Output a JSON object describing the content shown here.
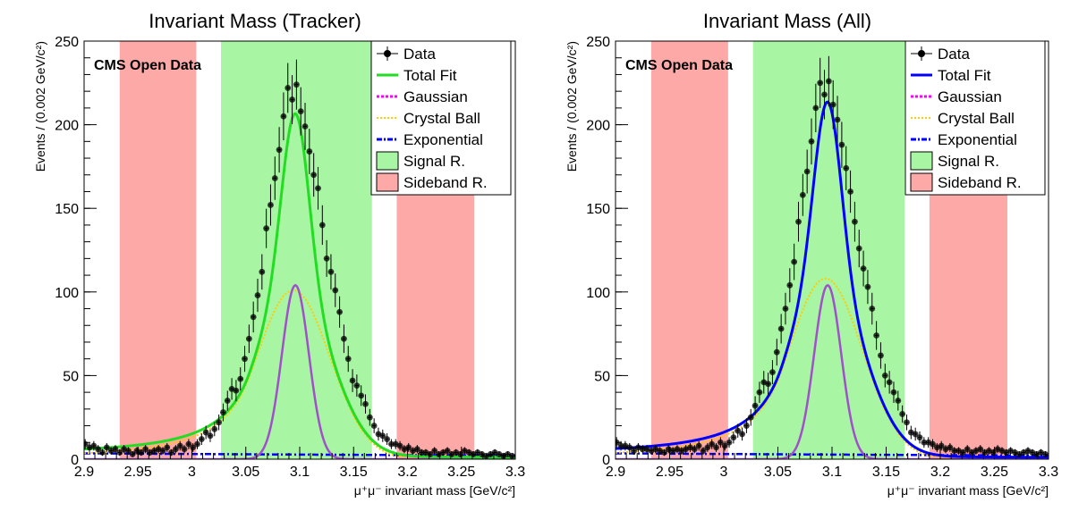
{
  "chart_data": [
    {
      "type": "line",
      "title": "Invariant Mass (Tracker)",
      "xlabel": "μ⁺μ⁻ invariant mass [GeV/c²]",
      "ylabel": "Events / (0.002 GeV/c²)",
      "xlim": [
        2.9,
        3.3
      ],
      "ylim": [
        0,
        250
      ],
      "xticks": [
        "2.9",
        "2.95",
        "3",
        "3.05",
        "3.1",
        "3.15",
        "3.2",
        "3.25",
        "3.3"
      ],
      "yticks": [
        "0",
        "50",
        "100",
        "150",
        "200",
        "250"
      ],
      "annotation": "CMS Open Data",
      "legend": [
        "Data",
        "Total Fit",
        "Gaussian",
        "Crystal Ball",
        "Exponential",
        "Signal R.",
        "Sideband R."
      ],
      "legend_position": "top-right",
      "regions": {
        "signal": [
          3.027,
          3.167
        ],
        "sideband_left": [
          2.933,
          3.004
        ],
        "sideband_right": [
          3.19,
          3.262
        ]
      },
      "colors": {
        "total_fit": "#22dd22",
        "gaussian": "#ff00ff",
        "crystal_ball": "#ffcc00",
        "exponential": "#0000ff",
        "signal_region": "#a8f5a4",
        "sideband_region": "#fca9a7"
      },
      "model": {
        "gaussian": {
          "amplitude": 104,
          "mean": 3.096,
          "sigma": 0.0125
        },
        "crystal_ball": {
          "amplitude": 101,
          "mean": 3.094,
          "sigma": 0.034,
          "alpha": 1.2,
          "n": 2
        },
        "exponential": {
          "amplitude": 3.5,
          "slope": -1.2
        }
      },
      "data": {
        "x": [
          2.901,
          2.905,
          2.909,
          2.913,
          2.917,
          2.921,
          2.925,
          2.929,
          2.933,
          2.937,
          2.941,
          2.945,
          2.949,
          2.953,
          2.957,
          2.961,
          2.965,
          2.969,
          2.973,
          2.977,
          2.981,
          2.985,
          2.989,
          2.993,
          2.997,
          3.001,
          3.005,
          3.009,
          3.013,
          3.017,
          3.021,
          3.025,
          3.029,
          3.033,
          3.037,
          3.041,
          3.045,
          3.049,
          3.053,
          3.057,
          3.061,
          3.065,
          3.069,
          3.073,
          3.077,
          3.081,
          3.085,
          3.089,
          3.093,
          3.097,
          3.101,
          3.105,
          3.109,
          3.113,
          3.117,
          3.121,
          3.125,
          3.129,
          3.133,
          3.137,
          3.141,
          3.145,
          3.149,
          3.153,
          3.157,
          3.161,
          3.165,
          3.169,
          3.173,
          3.177,
          3.181,
          3.185,
          3.189,
          3.193,
          3.197,
          3.201,
          3.205,
          3.209,
          3.213,
          3.217,
          3.221,
          3.225,
          3.229,
          3.233,
          3.237,
          3.241,
          3.245,
          3.249,
          3.253,
          3.257,
          3.261,
          3.265,
          3.269,
          3.273,
          3.277,
          3.281,
          3.285,
          3.289,
          3.293,
          3.297
        ],
        "y": [
          9,
          7,
          8,
          6,
          4,
          7,
          5,
          6,
          4,
          6,
          5,
          3,
          5,
          4,
          6,
          4,
          5,
          6,
          5,
          7,
          4,
          6,
          8,
          6,
          9,
          7,
          9,
          12,
          16,
          14,
          18,
          22,
          28,
          35,
          42,
          41,
          48,
          60,
          72,
          85,
          98,
          112,
          138,
          152,
          168,
          185,
          205,
          222,
          215,
          224,
          208,
          199,
          184,
          170,
          162,
          140,
          120,
          112,
          101,
          88,
          72,
          60,
          47,
          44,
          38,
          33,
          25,
          20,
          15,
          14,
          12,
          9,
          9,
          8,
          6,
          7,
          5,
          6,
          4,
          4,
          3,
          5,
          3,
          4,
          5,
          3,
          4,
          3,
          5,
          4,
          3,
          4,
          3,
          2,
          3,
          4,
          3,
          2,
          3,
          2
        ]
      }
    },
    {
      "type": "line",
      "title": "Invariant Mass (All)",
      "xlabel": "μ⁺μ⁻ invariant mass [GeV/c²]",
      "ylabel": "Events / (0.002 GeV/c²)",
      "xlim": [
        2.9,
        3.3
      ],
      "ylim": [
        0,
        250
      ],
      "xticks": [
        "2.9",
        "2.95",
        "3",
        "3.05",
        "3.1",
        "3.15",
        "3.2",
        "3.25",
        "3.3"
      ],
      "yticks": [
        "0",
        "50",
        "100",
        "150",
        "200",
        "250"
      ],
      "annotation": "CMS Open Data",
      "legend": [
        "Data",
        "Total Fit",
        "Gaussian",
        "Crystal Ball",
        "Exponential",
        "Signal R.",
        "Sideband R."
      ],
      "legend_position": "top-right",
      "regions": {
        "signal": [
          3.027,
          3.167
        ],
        "sideband_left": [
          2.933,
          3.004
        ],
        "sideband_right": [
          3.19,
          3.262
        ]
      },
      "colors": {
        "total_fit": "#0000ff",
        "gaussian": "#ff00ff",
        "crystal_ball": "#ffcc00",
        "exponential": "#0000ff",
        "signal_region": "#a8f5a4",
        "sideband_region": "#fca9a7"
      },
      "model": {
        "gaussian": {
          "amplitude": 104,
          "mean": 3.096,
          "sigma": 0.0125
        },
        "crystal_ball": {
          "amplitude": 108,
          "mean": 3.094,
          "sigma": 0.034,
          "alpha": 1.2,
          "n": 2
        },
        "exponential": {
          "amplitude": 3.5,
          "slope": -1.2
        }
      },
      "data": {
        "x": [
          2.901,
          2.905,
          2.909,
          2.913,
          2.917,
          2.921,
          2.925,
          2.929,
          2.933,
          2.937,
          2.941,
          2.945,
          2.949,
          2.953,
          2.957,
          2.961,
          2.965,
          2.969,
          2.973,
          2.977,
          2.981,
          2.985,
          2.989,
          2.993,
          2.997,
          3.001,
          3.005,
          3.009,
          3.013,
          3.017,
          3.021,
          3.025,
          3.029,
          3.033,
          3.037,
          3.041,
          3.045,
          3.049,
          3.053,
          3.057,
          3.061,
          3.065,
          3.069,
          3.073,
          3.077,
          3.081,
          3.085,
          3.089,
          3.093,
          3.097,
          3.101,
          3.105,
          3.109,
          3.113,
          3.117,
          3.121,
          3.125,
          3.129,
          3.133,
          3.137,
          3.141,
          3.145,
          3.149,
          3.153,
          3.157,
          3.161,
          3.165,
          3.169,
          3.173,
          3.177,
          3.181,
          3.185,
          3.189,
          3.193,
          3.197,
          3.201,
          3.205,
          3.209,
          3.213,
          3.217,
          3.221,
          3.225,
          3.229,
          3.233,
          3.237,
          3.241,
          3.245,
          3.249,
          3.253,
          3.257,
          3.261,
          3.265,
          3.269,
          3.273,
          3.277,
          3.281,
          3.285,
          3.289,
          3.293,
          3.297
        ],
        "y": [
          10,
          8,
          8,
          7,
          5,
          7,
          6,
          6,
          5,
          6,
          5,
          4,
          6,
          5,
          6,
          5,
          6,
          7,
          6,
          8,
          5,
          7,
          9,
          7,
          10,
          8,
          10,
          13,
          17,
          15,
          20,
          25,
          32,
          40,
          46,
          45,
          52,
          64,
          78,
          90,
          104,
          118,
          142,
          158,
          172,
          190,
          210,
          225,
          218,
          226,
          212,
          203,
          188,
          174,
          160,
          142,
          126,
          114,
          103,
          90,
          74,
          62,
          50,
          46,
          40,
          35,
          27,
          22,
          16,
          15,
          13,
          10,
          10,
          9,
          7,
          8,
          6,
          7,
          5,
          5,
          4,
          6,
          4,
          5,
          6,
          4,
          5,
          4,
          6,
          5,
          4,
          5,
          4,
          3,
          4,
          5,
          4,
          3,
          4,
          3
        ]
      }
    }
  ]
}
